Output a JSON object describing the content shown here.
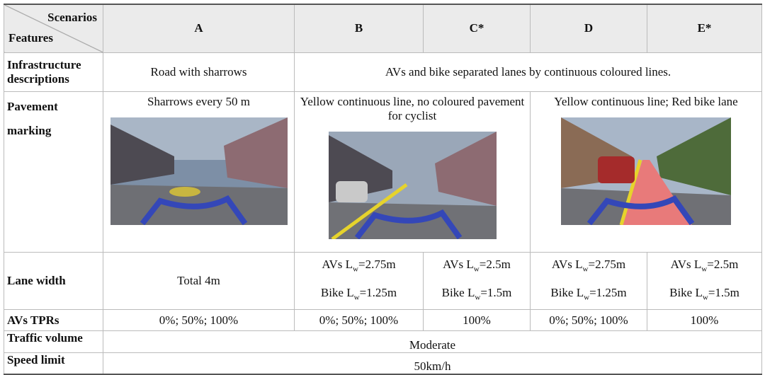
{
  "header": {
    "corner_top": "Scenarios",
    "corner_bottom": "Features",
    "columns": [
      "A",
      "B",
      "C*",
      "D",
      "E*"
    ]
  },
  "rows": {
    "infrastructure": {
      "label": "Infrastructure descriptions",
      "a": "Road with sharrows",
      "b_to_e": "AVs and bike separated lanes by continuous coloured lines."
    },
    "pavement": {
      "label": "Pavement marking",
      "a": "Sharrows every 50 m",
      "b_c": "Yellow continuous line, no coloured pavement for cyclist",
      "d_e": "Yellow continuous line; Red bike lane"
    },
    "lane_width": {
      "label": "Lane width",
      "a": "Total 4m",
      "b": [
        {
          "prefix": "AVs L",
          "sub": "w",
          "suffix": "=2.75m"
        },
        {
          "prefix": "Bike L",
          "sub": "w",
          "suffix": "=1.25m"
        }
      ],
      "c": [
        {
          "prefix": "AVs L",
          "sub": "w",
          "suffix": "=2.5m"
        },
        {
          "prefix": "Bike L",
          "sub": "w",
          "suffix": "=1.5m"
        }
      ],
      "d": [
        {
          "prefix": "AVs L",
          "sub": "w",
          "suffix": "=2.75m"
        },
        {
          "prefix": "Bike L",
          "sub": "w",
          "suffix": "=1.25m"
        }
      ],
      "e": [
        {
          "prefix": "AVs L",
          "sub": "w",
          "suffix": "=2.5m"
        },
        {
          "prefix": "Bike L",
          "sub": "w",
          "suffix": "=1.5m"
        }
      ]
    },
    "tprs": {
      "label": "AVs TPRs",
      "a": "0%; 50%; 100%",
      "b": "0%; 50%; 100%",
      "c": "100%",
      "d": "0%; 50%; 100%",
      "e": "100%"
    },
    "traffic": {
      "label": "Traffic volume",
      "value": "Moderate"
    },
    "speed": {
      "label": "Speed limit",
      "value": "50km/h"
    }
  }
}
